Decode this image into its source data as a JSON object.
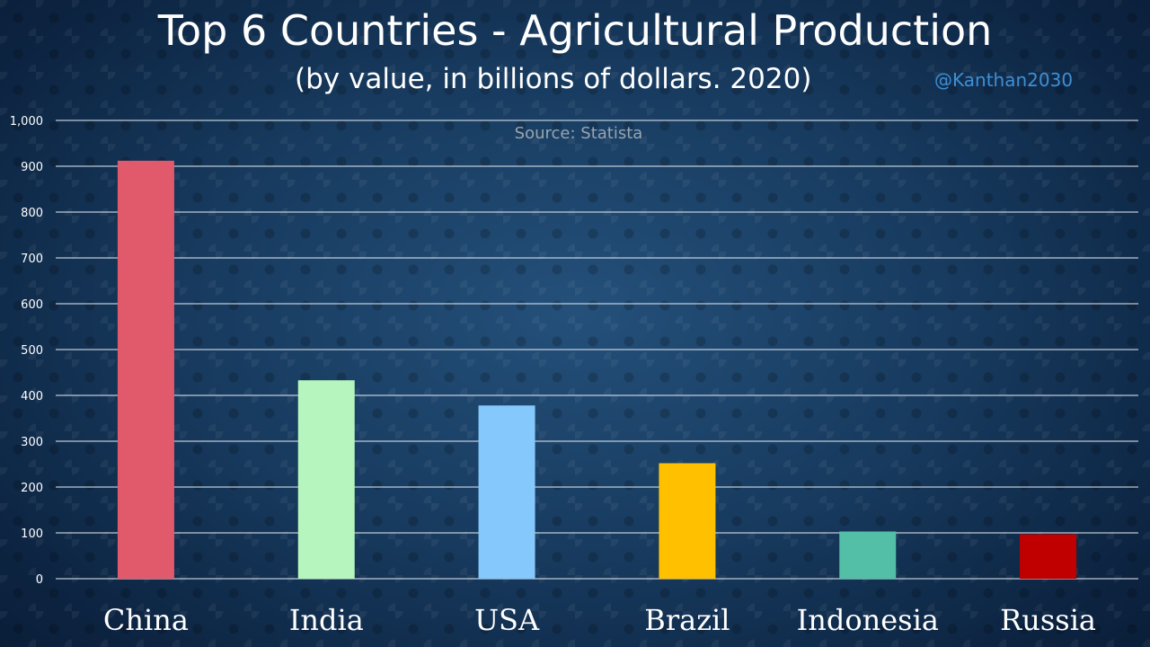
{
  "header": {
    "title": "Top 6 Countries - Agricultural Production",
    "subtitle": "(by value, in billions of dollars. 2020)",
    "handle": "@Kanthan2030",
    "source": "Source: Statista"
  },
  "chart_data": {
    "type": "bar",
    "title": "Top 6 Countries - Agricultural Production",
    "subtitle": "(by value, in billions of dollars. 2020)",
    "xlabel": "",
    "ylabel": "",
    "categories": [
      "China",
      "India",
      "USA",
      "Brazil",
      "Indonesia",
      "Russia"
    ],
    "values": [
      912,
      433,
      378,
      252,
      103,
      97
    ],
    "colors": [
      "#e05a6b",
      "#b6f5bd",
      "#85c8fc",
      "#ffc000",
      "#52bfa6",
      "#c00000"
    ],
    "ylim": [
      0,
      1000
    ],
    "yticks": [
      0,
      100,
      200,
      300,
      400,
      500,
      600,
      700,
      800,
      900,
      1000
    ],
    "ytick_labels": [
      "0",
      "100",
      "200",
      "300",
      "400",
      "500",
      "600",
      "700",
      "800",
      "900",
      "1,000"
    ],
    "grid": true,
    "legend": "none"
  }
}
